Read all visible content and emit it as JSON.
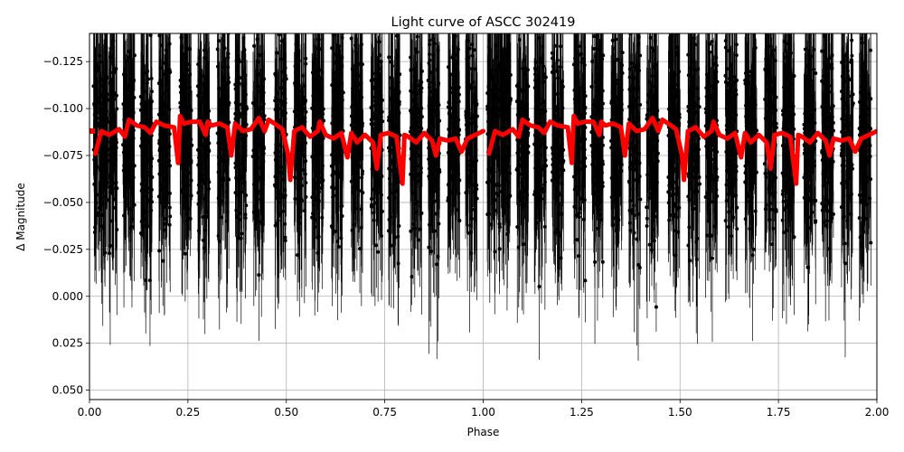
{
  "chart_data": {
    "type": "scatter",
    "title": "Light curve of ASCC 302419",
    "xlabel": "Phase",
    "ylabel": "Δ Magnitude",
    "xlim": [
      0.0,
      2.0
    ],
    "ylim": [
      0.055,
      -0.14
    ],
    "y_inverted": true,
    "grid": true,
    "x_ticks": [
      0.0,
      0.25,
      0.5,
      0.75,
      1.0,
      1.25,
      1.5,
      1.75,
      2.0
    ],
    "x_tick_labels": [
      "0.00",
      "0.25",
      "0.50",
      "0.75",
      "1.00",
      "1.25",
      "1.50",
      "1.75",
      "2.00"
    ],
    "y_ticks": [
      -0.125,
      -0.1,
      -0.075,
      -0.05,
      -0.025,
      0.0,
      0.025,
      0.05
    ],
    "y_tick_labels": [
      "−0.125",
      "−0.100",
      "−0.075",
      "−0.050",
      "−0.025",
      "0.000",
      "0.025",
      "0.050"
    ],
    "series": [
      {
        "kind": "data_points_with_errorbars",
        "color": "#000000",
        "phase_clusters": [
          0.025,
          0.055,
          0.1,
          0.145,
          0.19,
          0.245,
          0.29,
          0.34,
          0.385,
          0.43,
          0.485,
          0.535,
          0.58,
          0.63,
          0.68,
          0.73,
          0.775,
          0.83,
          0.875,
          0.925,
          0.97
        ],
        "median_mag": -0.085,
        "spread": 0.045
      },
      {
        "kind": "binned_model",
        "color": "#ff0000",
        "x": [
          0.015,
          0.03,
          0.05,
          0.075,
          0.09,
          0.1,
          0.12,
          0.14,
          0.155,
          0.17,
          0.19,
          0.215,
          0.225,
          0.23,
          0.24,
          0.26,
          0.28,
          0.295,
          0.3,
          0.31,
          0.33,
          0.35,
          0.36,
          0.37,
          0.39,
          0.41,
          0.43,
          0.445,
          0.455,
          0.47,
          0.49,
          0.505,
          0.51,
          0.52,
          0.54,
          0.56,
          0.58,
          0.585,
          0.6,
          0.62,
          0.64,
          0.655,
          0.665,
          0.68,
          0.7,
          0.72,
          0.73,
          0.74,
          0.76,
          0.78,
          0.795,
          0.8,
          0.81,
          0.83,
          0.85,
          0.87,
          0.88,
          0.89,
          0.91,
          0.93,
          0.945,
          0.96,
          0.98,
          1.0
        ],
        "y": [
          -0.076,
          -0.088,
          -0.086,
          -0.089,
          -0.085,
          -0.094,
          -0.091,
          -0.09,
          -0.087,
          -0.093,
          -0.091,
          -0.09,
          -0.071,
          -0.096,
          -0.092,
          -0.093,
          -0.093,
          -0.086,
          -0.093,
          -0.091,
          -0.092,
          -0.09,
          -0.075,
          -0.092,
          -0.088,
          -0.089,
          -0.095,
          -0.088,
          -0.094,
          -0.092,
          -0.089,
          -0.075,
          -0.062,
          -0.088,
          -0.09,
          -0.085,
          -0.088,
          -0.093,
          -0.086,
          -0.084,
          -0.087,
          -0.074,
          -0.087,
          -0.082,
          -0.086,
          -0.082,
          -0.068,
          -0.086,
          -0.087,
          -0.085,
          -0.06,
          -0.086,
          -0.085,
          -0.082,
          -0.087,
          -0.083,
          -0.075,
          -0.084,
          -0.083,
          -0.084,
          -0.077,
          -0.084,
          -0.086,
          -0.088
        ],
        "first_point": [
          0.0,
          -0.088
        ]
      }
    ]
  }
}
